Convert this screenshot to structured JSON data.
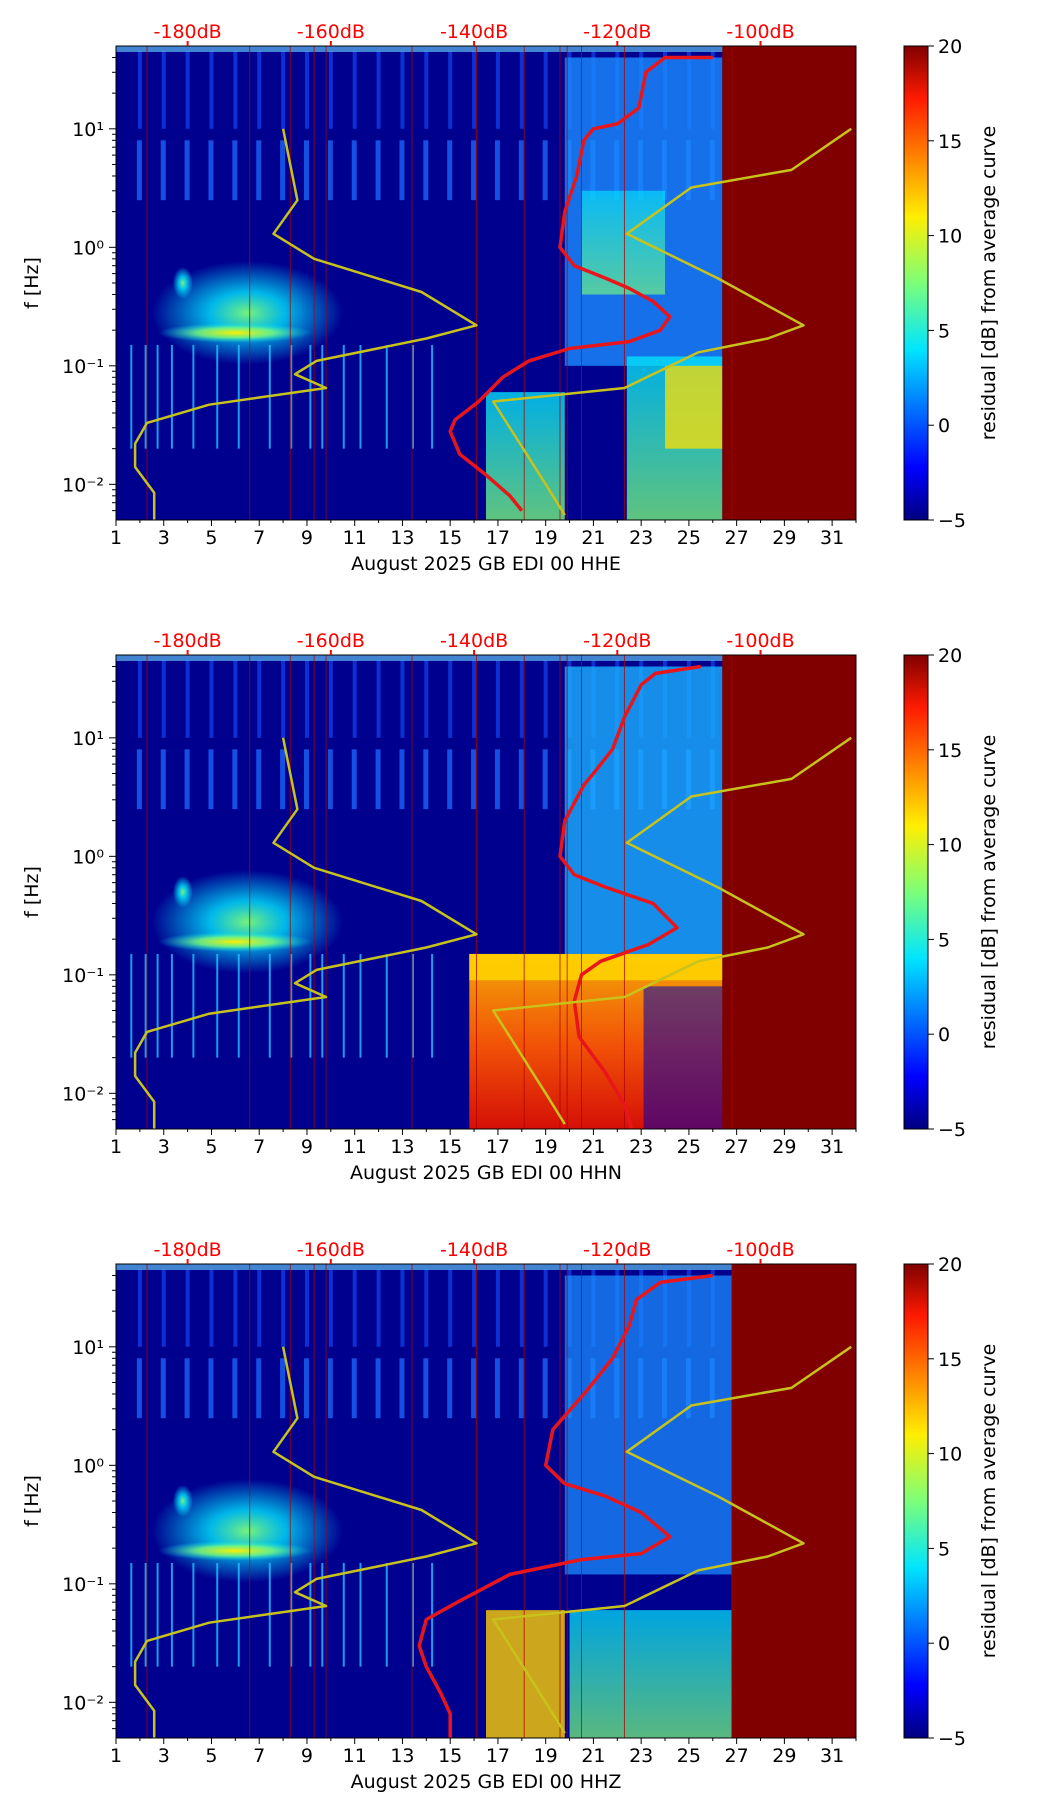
{
  "chart_data": [
    {
      "type": "heatmap",
      "xlabel": "August 2025 GB EDI 00 HHE",
      "ylabel": "f [Hz]",
      "x_ticks": [
        1,
        3,
        5,
        7,
        9,
        11,
        13,
        15,
        17,
        19,
        21,
        23,
        25,
        27,
        29,
        31
      ],
      "x_range": [
        1,
        32
      ],
      "y_range_hz": [
        0.005,
        50
      ],
      "y_ticks": [
        {
          "value": 0.01,
          "label": "10⁻²"
        },
        {
          "value": 0.1,
          "label": "10⁻¹"
        },
        {
          "value": 1,
          "label": "10⁰"
        },
        {
          "value": 10,
          "label": "10¹"
        }
      ],
      "top_axis_ticks": [
        "-180dB",
        "-160dB",
        "-140dB",
        "-120dB",
        "-100dB"
      ],
      "colorbar": {
        "label": "residual [dB] from average curve",
        "min": -5,
        "max": 20,
        "ticks": [
          -5,
          0,
          5,
          10,
          15,
          20
        ]
      },
      "series": [
        {
          "name": "average PSD",
          "color": "#e8161b",
          "points": [
            [
              26,
              40
            ],
            [
              24,
              40
            ],
            [
              23.2,
              30
            ],
            [
              22.9,
              15
            ],
            [
              22,
              11
            ],
            [
              21,
              10
            ],
            [
              20.6,
              8
            ],
            [
              20.3,
              4
            ],
            [
              19.8,
              2
            ],
            [
              19.6,
              1
            ],
            [
              20.2,
              0.7
            ],
            [
              21.5,
              0.55
            ],
            [
              22.5,
              0.45
            ],
            [
              23.5,
              0.35
            ],
            [
              24.2,
              0.26
            ],
            [
              23.8,
              0.2
            ],
            [
              22.5,
              0.16
            ],
            [
              20,
              0.14
            ],
            [
              18.3,
              0.11
            ],
            [
              17.2,
              0.08
            ],
            [
              16.2,
              0.05
            ],
            [
              15.2,
              0.035
            ],
            [
              15,
              0.028
            ],
            [
              15.4,
              0.018
            ],
            [
              16.5,
              0.012
            ],
            [
              17.5,
              0.008
            ],
            [
              18,
              0.006
            ]
          ]
        },
        {
          "name": "noise model",
          "color": "#c8c21c",
          "points": [
            [
              8,
              10
            ],
            [
              8.6,
              2.5
            ],
            [
              7.6,
              1.3
            ],
            [
              9.3,
              0.8
            ],
            [
              13.8,
              0.42
            ],
            [
              16.1,
              0.22
            ],
            [
              14,
              0.17
            ],
            [
              9.4,
              0.11
            ],
            [
              8.5,
              0.085
            ],
            [
              9.8,
              0.065
            ],
            [
              4.9,
              0.047
            ],
            [
              2.3,
              0.033
            ],
            [
              1.8,
              0.022
            ],
            [
              1.8,
              0.014
            ],
            [
              2.6,
              0.0085
            ],
            [
              2.6,
              0.005
            ]
          ]
        },
        {
          "name": "noise model (upper)",
          "color": "#c8c21c",
          "points": [
            [
              31.8,
              10
            ],
            [
              29.3,
              4.5
            ],
            [
              25.1,
              3.2
            ],
            [
              22.4,
              1.3
            ],
            [
              26.2,
              0.55
            ],
            [
              29.8,
              0.22
            ],
            [
              28.3,
              0.17
            ],
            [
              25.4,
              0.13
            ],
            [
              22.3,
              0.065
            ],
            [
              16.8,
              0.05
            ],
            [
              19,
              0.01
            ],
            [
              19.8,
              0.0055
            ]
          ]
        }
      ]
    },
    {
      "type": "heatmap",
      "xlabel": "August 2025 GB EDI 00 HHN",
      "ylabel": "f [Hz]",
      "x_ticks": [
        1,
        3,
        5,
        7,
        9,
        11,
        13,
        15,
        17,
        19,
        21,
        23,
        25,
        27,
        29,
        31
      ],
      "x_range": [
        1,
        32
      ],
      "y_range_hz": [
        0.005,
        50
      ],
      "y_ticks": [
        {
          "value": 0.01,
          "label": "10⁻²"
        },
        {
          "value": 0.1,
          "label": "10⁻¹"
        },
        {
          "value": 1,
          "label": "10⁰"
        },
        {
          "value": 10,
          "label": "10¹"
        }
      ],
      "top_axis_ticks": [
        "-180dB",
        "-160dB",
        "-140dB",
        "-120dB",
        "-100dB"
      ],
      "colorbar": {
        "label": "residual [dB] from average curve",
        "min": -5,
        "max": 20,
        "ticks": [
          -5,
          0,
          5,
          10,
          15,
          20
        ]
      },
      "series": [
        {
          "name": "average PSD",
          "color": "#e8161b",
          "points": [
            [
              25.5,
              40
            ],
            [
              23.6,
              35
            ],
            [
              23,
              28
            ],
            [
              22.3,
              15
            ],
            [
              21.8,
              8
            ],
            [
              21,
              5
            ],
            [
              20.6,
              4
            ],
            [
              19.8,
              2
            ],
            [
              19.6,
              1
            ],
            [
              20.2,
              0.7
            ],
            [
              21.5,
              0.55
            ],
            [
              23.5,
              0.4
            ],
            [
              24.5,
              0.25
            ],
            [
              23.3,
              0.18
            ],
            [
              21.3,
              0.13
            ],
            [
              20.5,
              0.1
            ],
            [
              20.2,
              0.06
            ],
            [
              20.4,
              0.03
            ],
            [
              21.5,
              0.015
            ],
            [
              22.3,
              0.008
            ],
            [
              22.6,
              0.005
            ]
          ]
        },
        {
          "name": "noise model",
          "color": "#c8c21c",
          "points": [
            [
              8,
              10
            ],
            [
              8.6,
              2.5
            ],
            [
              7.6,
              1.3
            ],
            [
              9.3,
              0.8
            ],
            [
              13.8,
              0.42
            ],
            [
              16.1,
              0.22
            ],
            [
              14,
              0.17
            ],
            [
              9.4,
              0.11
            ],
            [
              8.5,
              0.085
            ],
            [
              9.8,
              0.065
            ],
            [
              4.9,
              0.047
            ],
            [
              2.3,
              0.033
            ],
            [
              1.8,
              0.022
            ],
            [
              1.8,
              0.014
            ],
            [
              2.6,
              0.0085
            ],
            [
              2.6,
              0.005
            ]
          ]
        },
        {
          "name": "noise model (upper)",
          "color": "#c8c21c",
          "points": [
            [
              31.8,
              10
            ],
            [
              29.3,
              4.5
            ],
            [
              25.1,
              3.2
            ],
            [
              22.4,
              1.3
            ],
            [
              26.2,
              0.55
            ],
            [
              29.8,
              0.22
            ],
            [
              28.3,
              0.17
            ],
            [
              25.4,
              0.13
            ],
            [
              22.3,
              0.065
            ],
            [
              16.8,
              0.05
            ],
            [
              19,
              0.01
            ],
            [
              19.8,
              0.0055
            ]
          ]
        }
      ]
    },
    {
      "type": "heatmap",
      "xlabel": "August 2025 GB EDI 00 HHZ",
      "ylabel": "f [Hz]",
      "x_ticks": [
        1,
        3,
        5,
        7,
        9,
        11,
        13,
        15,
        17,
        19,
        21,
        23,
        25,
        27,
        29,
        31
      ],
      "x_range": [
        1,
        32
      ],
      "y_range_hz": [
        0.005,
        50
      ],
      "y_ticks": [
        {
          "value": 0.01,
          "label": "10⁻²"
        },
        {
          "value": 0.1,
          "label": "10⁻¹"
        },
        {
          "value": 1,
          "label": "10⁰"
        },
        {
          "value": 10,
          "label": "10¹"
        }
      ],
      "top_axis_ticks": [
        "-180dB",
        "-160dB",
        "-140dB",
        "-120dB",
        "-100dB"
      ],
      "colorbar": {
        "label": "residual [dB] from average curve",
        "min": -5,
        "max": 20,
        "ticks": [
          -5,
          0,
          5,
          10,
          15,
          20
        ]
      },
      "series": [
        {
          "name": "average PSD",
          "color": "#e8161b",
          "points": [
            [
              26,
              40
            ],
            [
              23.8,
              35
            ],
            [
              22.8,
              25
            ],
            [
              22.5,
              15
            ],
            [
              21.8,
              8
            ],
            [
              21,
              5
            ],
            [
              20.6,
              4
            ],
            [
              19.3,
              2
            ],
            [
              19,
              1
            ],
            [
              19.8,
              0.7
            ],
            [
              21.5,
              0.55
            ],
            [
              23,
              0.4
            ],
            [
              24.2,
              0.25
            ],
            [
              23,
              0.18
            ],
            [
              20.5,
              0.16
            ],
            [
              17.5,
              0.12
            ],
            [
              15.3,
              0.07
            ],
            [
              14,
              0.05
            ],
            [
              13.7,
              0.03
            ],
            [
              14,
              0.02
            ],
            [
              14.6,
              0.012
            ],
            [
              15,
              0.008
            ],
            [
              15,
              0.005
            ]
          ]
        },
        {
          "name": "noise model",
          "color": "#c8c21c",
          "points": [
            [
              8,
              10
            ],
            [
              8.6,
              2.5
            ],
            [
              7.6,
              1.3
            ],
            [
              9.3,
              0.8
            ],
            [
              13.8,
              0.42
            ],
            [
              16.1,
              0.22
            ],
            [
              14,
              0.17
            ],
            [
              9.4,
              0.11
            ],
            [
              8.5,
              0.085
            ],
            [
              9.8,
              0.065
            ],
            [
              4.9,
              0.047
            ],
            [
              2.3,
              0.033
            ],
            [
              1.8,
              0.022
            ],
            [
              1.8,
              0.014
            ],
            [
              2.6,
              0.0085
            ],
            [
              2.6,
              0.005
            ]
          ]
        },
        {
          "name": "noise model (upper)",
          "color": "#c8c21c",
          "points": [
            [
              31.8,
              10
            ],
            [
              29.3,
              4.5
            ],
            [
              25.1,
              3.2
            ],
            [
              22.4,
              1.3
            ],
            [
              26.2,
              0.55
            ],
            [
              29.8,
              0.22
            ],
            [
              28.3,
              0.17
            ],
            [
              25.4,
              0.13
            ],
            [
              22.3,
              0.065
            ],
            [
              16.8,
              0.05
            ],
            [
              19,
              0.01
            ],
            [
              19.8,
              0.0055
            ]
          ]
        }
      ]
    }
  ]
}
